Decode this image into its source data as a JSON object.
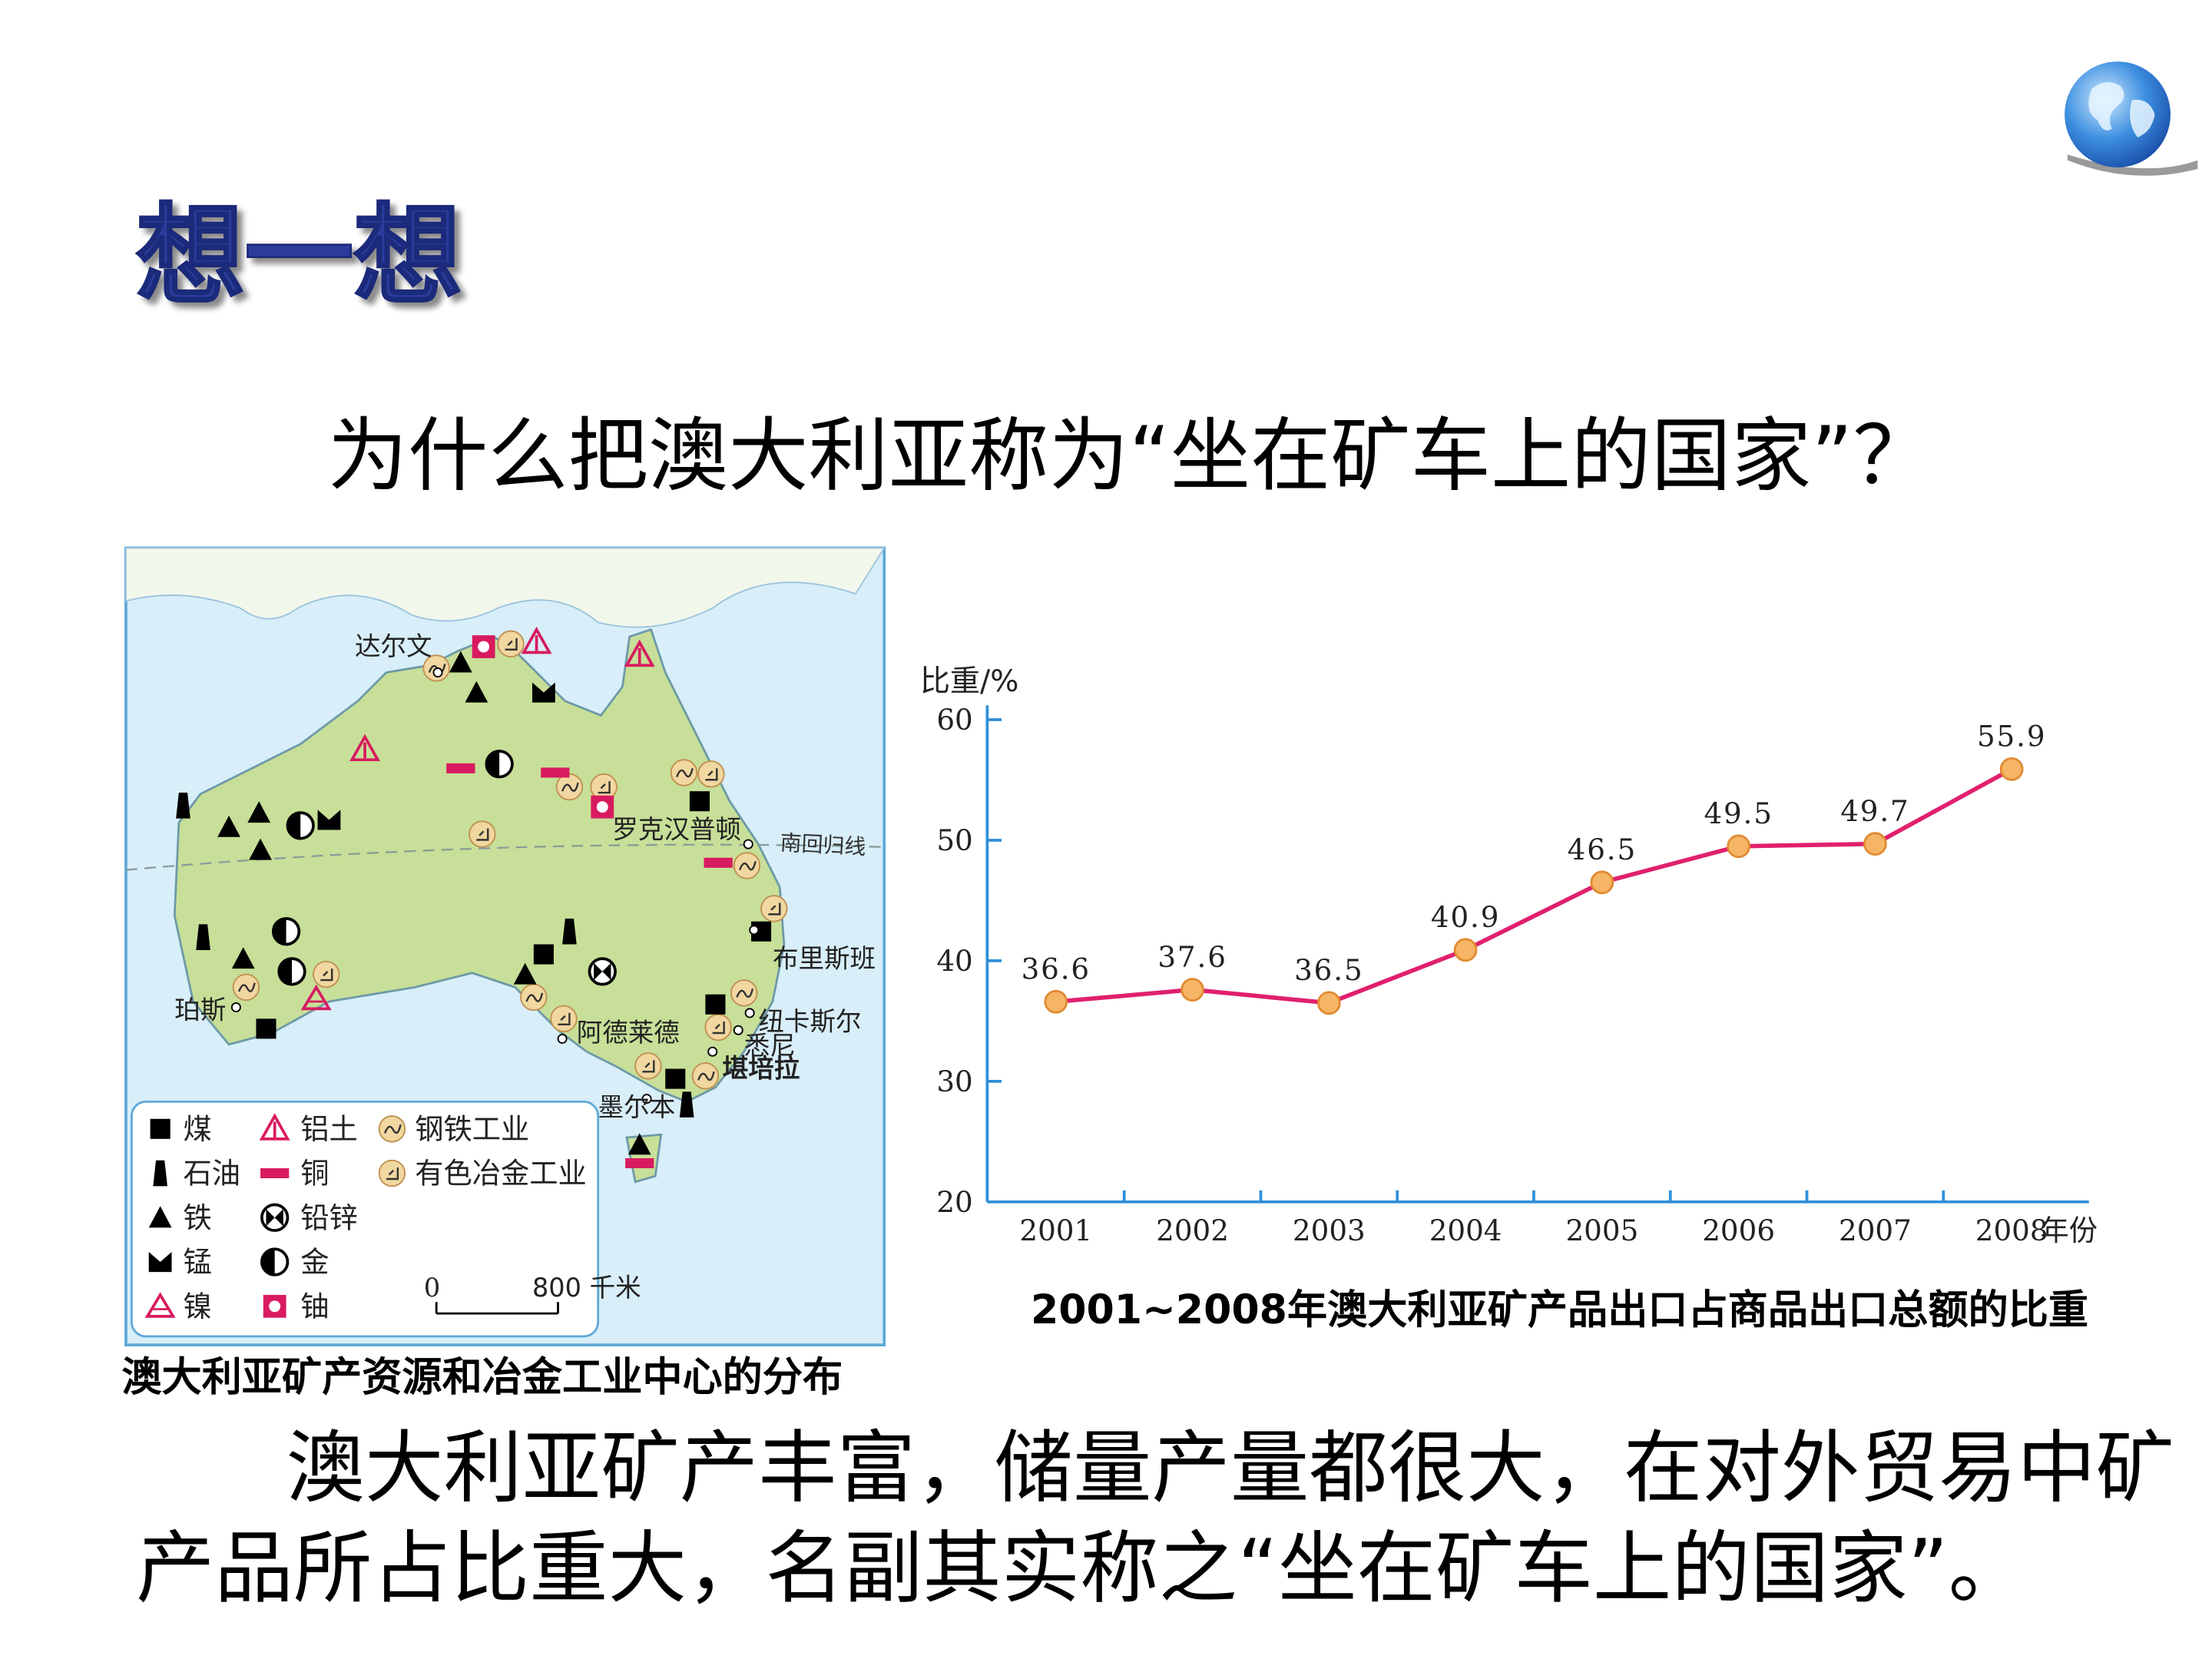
{
  "title": "想一想",
  "question": "为什么把澳大利亚称为“坐在矿车上的国家”？",
  "map": {
    "caption": "澳大利亚矿产资源和冶金工业中心的分布",
    "places": [
      "达尔文",
      "罗克汉普顿",
      "布里斯班",
      "珀斯",
      "阿德莱德",
      "纽卡斯尔",
      "悉尼",
      "堪培拉",
      "墨尔本"
    ],
    "tropic": "南回归线",
    "legend": [
      "煤",
      "石油",
      "铁",
      "锰",
      "镍",
      "铝土",
      "铜",
      "铅锌",
      "金",
      "铀",
      "钢铁工业",
      "有色冶金工业"
    ],
    "scale": [
      "0",
      "800 千米"
    ]
  },
  "chart_data": {
    "type": "line",
    "caption": "2001~2008年澳大利亚矿产品出口占商品出口总额的比重",
    "ylabel": "比重/%",
    "xlabel": "年份",
    "categories": [
      "2001",
      "2002",
      "2003",
      "2004",
      "2005",
      "2006",
      "2007",
      "2008"
    ],
    "values": [
      36.6,
      37.6,
      36.5,
      40.9,
      46.5,
      49.5,
      49.7,
      55.9
    ],
    "color": "#e0206e",
    "marker_color": "#f6b566",
    "ylim": [
      20,
      60
    ],
    "yticks": [
      20,
      30,
      40,
      50,
      60
    ]
  },
  "conclusion": [
    "澳大利亚矿产丰富，储量产量都很大，在对外贸易中矿",
    "产品所占比重大，名副其实称之“坐在矿车上的国家”。"
  ]
}
